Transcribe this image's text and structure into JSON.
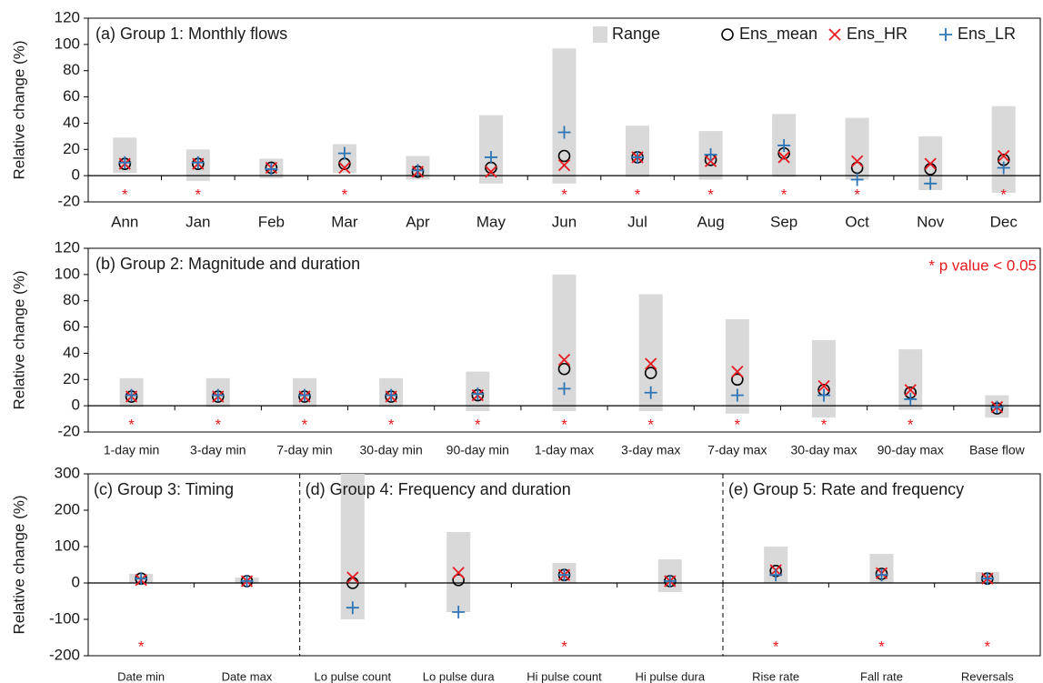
{
  "chart_data": [
    {
      "type": "range-dot",
      "title": "(a) Group 1: Monthly flows",
      "y_label": "Relative change (%)",
      "ylim": [
        -20,
        120
      ],
      "yticks": [
        -20,
        0,
        20,
        40,
        60,
        80,
        100,
        120
      ],
      "categories": [
        "Ann",
        "Jan",
        "Feb",
        "Mar",
        "Apr",
        "May",
        "Jun",
        "Jul",
        "Aug",
        "Sep",
        "Oct",
        "Nov",
        "Dec"
      ],
      "series": [
        {
          "name": "Range",
          "color": "#d9d9d9",
          "low": [
            2,
            -4,
            -2,
            2,
            -3,
            -6,
            -6,
            -1,
            -3,
            -1,
            -3,
            -11,
            -13
          ],
          "high": [
            29,
            20,
            13,
            24,
            15,
            46,
            97,
            38,
            34,
            47,
            44,
            30,
            53
          ]
        },
        {
          "name": "Ens_mean",
          "color": "#000000",
          "values": [
            9,
            9,
            6,
            9,
            3,
            6,
            15,
            14,
            12,
            17,
            6,
            5,
            12
          ]
        },
        {
          "name": "Ens_HR",
          "color": "#e8191f",
          "values": [
            9,
            9,
            6,
            6,
            3,
            3,
            8,
            14,
            11,
            14,
            11,
            9,
            15
          ]
        },
        {
          "name": "Ens_LR",
          "color": "#2e75b6",
          "values": [
            10,
            10,
            5,
            17,
            4,
            14,
            33,
            14,
            16,
            23,
            -3,
            -6,
            6
          ]
        }
      ],
      "significance": [
        "*",
        "*",
        null,
        "*",
        null,
        null,
        "*",
        "*",
        "*",
        "*",
        "*",
        null,
        "*"
      ],
      "significance_color": "#e8191f"
    },
    {
      "type": "range-dot",
      "title": "(b) Group 2: Magnitude and duration",
      "y_label": "Relative change (%)",
      "annotation": "* p value < 0.05",
      "ylim": [
        -20,
        120
      ],
      "yticks": [
        -20,
        0,
        20,
        40,
        60,
        80,
        100,
        120
      ],
      "categories": [
        "1-day min",
        "3-day min",
        "7-day min",
        "30-day min",
        "90-day min",
        "1-day max",
        "3-day max",
        "7-day max",
        "30-day max",
        "90-day max",
        "Base flow"
      ],
      "series": [
        {
          "color": "#d9d9d9",
          "low": [
            -1,
            -1,
            -1,
            -1,
            -4,
            -4,
            -4,
            -6,
            -9,
            -3,
            -9
          ],
          "high": [
            21,
            21,
            21,
            21,
            26,
            100,
            85,
            66,
            50,
            43,
            8
          ]
        },
        {
          "color": "#000000",
          "values": [
            7,
            7,
            7,
            7,
            8,
            28,
            25,
            20,
            12,
            10,
            -2
          ]
        },
        {
          "color": "#e8191f",
          "values": [
            7,
            7,
            7,
            7,
            8,
            35,
            32,
            26,
            15,
            12,
            -1
          ]
        },
        {
          "color": "#2e75b6",
          "values": [
            8,
            8,
            8,
            8,
            9,
            13,
            10,
            8,
            8,
            5,
            -1
          ]
        }
      ],
      "significance": [
        "*",
        "*",
        "*",
        "*",
        "*",
        "*",
        "*",
        "*",
        "*",
        "*",
        null
      ],
      "significance_color": "#e8191f"
    },
    {
      "type": "range-dot",
      "group_titles": [
        "(c) Group 3: Timing",
        "(d) Group 4: Frequency and duration",
        "(e) Group 5: Rate and frequency"
      ],
      "y_label": "Relative change (%)",
      "ylim": [
        -200,
        300
      ],
      "yticks": [
        -200,
        -100,
        0,
        100,
        200,
        300
      ],
      "categories": [
        "Date min",
        "Date max",
        "Lo pulse count",
        "Lo pulse dura",
        "Hi pulse count",
        "Hi pulse dura",
        "Rise rate",
        "Fall rate",
        "Reversals"
      ],
      "series": [
        {
          "color": "#d9d9d9",
          "low": [
            0,
            0,
            -100,
            -80,
            0,
            -25,
            0,
            0,
            0
          ],
          "high": [
            25,
            15,
            300,
            140,
            55,
            65,
            100,
            80,
            30
          ]
        },
        {
          "color": "#000000",
          "values": [
            12,
            5,
            0,
            8,
            22,
            5,
            33,
            25,
            12
          ]
        },
        {
          "color": "#e8191f",
          "values": [
            8,
            5,
            15,
            28,
            22,
            5,
            35,
            27,
            12
          ]
        },
        {
          "color": "#2e75b6",
          "values": [
            12,
            5,
            -68,
            -80,
            22,
            5,
            22,
            22,
            12
          ]
        }
      ],
      "significance": [
        "*",
        null,
        null,
        null,
        "*",
        null,
        "*",
        "*",
        "*"
      ],
      "significance_color": "#e8191f"
    }
  ]
}
